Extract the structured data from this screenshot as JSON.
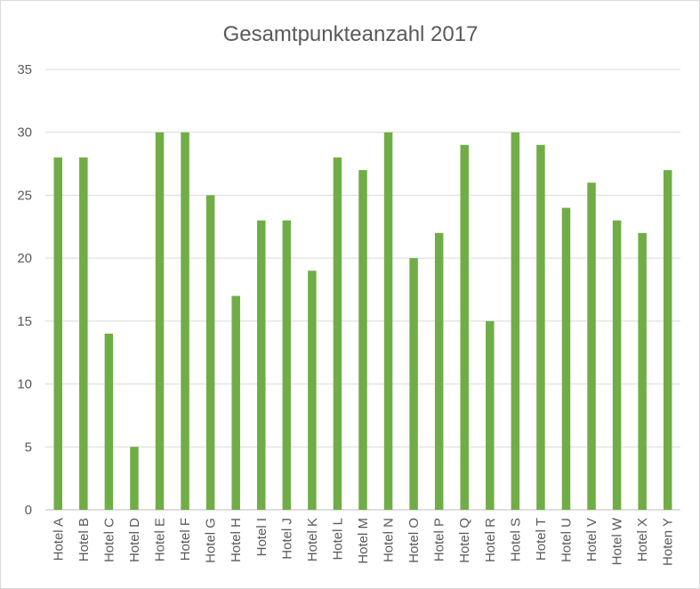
{
  "chart_data": {
    "type": "bar",
    "title": "Gesamtpunkteanzahl 2017",
    "xlabel": "",
    "ylabel": "",
    "ylim": [
      0,
      35
    ],
    "yticks": [
      0,
      5,
      10,
      15,
      20,
      25,
      30,
      35
    ],
    "grid": true,
    "legend": "none",
    "bar_color": "#70ad47",
    "categories": [
      "Hotel A",
      "Hotel B",
      "Hotel C",
      "Hotel D",
      "Hotel E",
      "Hotel F",
      "Hotel G",
      "Hotel H",
      "Hotel I",
      "Hotel J",
      "Hotel K",
      "Hotel L",
      "Hotel M",
      "Hotel N",
      "Hotel O",
      "Hotel P",
      "Hotel Q",
      "Hotel R",
      "Hotel S",
      "Hotel T",
      "Hotel U",
      "Hotel V",
      "Hotel W",
      "Hotel X",
      "Hoten Y"
    ],
    "values": [
      28,
      28,
      14,
      5,
      30,
      30,
      25,
      17,
      23,
      23,
      19,
      28,
      27,
      30,
      20,
      22,
      29,
      15,
      30,
      29,
      24,
      26,
      23,
      22,
      27
    ]
  }
}
